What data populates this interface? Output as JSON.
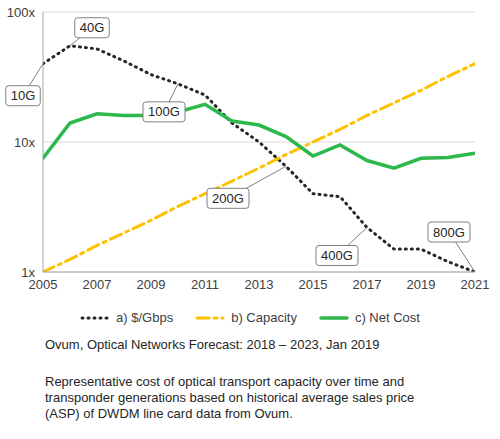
{
  "chart_data": {
    "type": "line",
    "log": "y",
    "grid": true,
    "x": [
      2005,
      2006,
      2007,
      2008,
      2009,
      2010,
      2011,
      2012,
      2013,
      2014,
      2015,
      2016,
      2017,
      2018,
      2019,
      2020,
      2021
    ],
    "xlim": [
      2005,
      2021
    ],
    "xticks": [
      2005,
      2007,
      2009,
      2011,
      2013,
      2015,
      2017,
      2019,
      2021
    ],
    "ylim": [
      1,
      100
    ],
    "yticks": [
      {
        "value": 1,
        "label": "1x"
      },
      {
        "value": 10,
        "label": "10x"
      },
      {
        "value": 100,
        "label": "100x"
      }
    ],
    "legend": "bottom",
    "series": [
      {
        "name": "a) $/Gbps",
        "color": "#262626",
        "line_style": "dotted",
        "values": [
          40,
          55,
          52,
          42,
          33,
          28,
          23,
          14,
          10,
          6.5,
          4,
          3.8,
          2.2,
          1.5,
          1.5,
          1.2,
          1
        ]
      },
      {
        "name": "b) Capacity",
        "color": "#ffc000",
        "line_style": "dash_dot",
        "values": [
          1,
          1.25,
          1.6,
          2,
          2.5,
          3.2,
          4,
          5,
          6.3,
          8,
          10,
          12.5,
          16,
          20,
          25,
          32,
          40
        ]
      },
      {
        "name": "c) Net Cost",
        "color": "#2eb84b",
        "line_style": "solid",
        "values": [
          7.5,
          14,
          16.5,
          16,
          16,
          17,
          19.5,
          14.5,
          13.5,
          11,
          7.8,
          9.5,
          7.2,
          6.3,
          7.5,
          7.6,
          8.2
        ]
      }
    ],
    "annotations": [
      {
        "text": "10G",
        "x": 2005,
        "y": 40
      },
      {
        "text": "40G",
        "x": 2006,
        "y": 55
      },
      {
        "text": "100G",
        "x": 2010,
        "y": 28
      },
      {
        "text": "200G",
        "x": 2014,
        "y": 6.5
      },
      {
        "text": "400G",
        "x": 2017,
        "y": 2.2
      },
      {
        "text": "800G",
        "x": 2021,
        "y": 1
      }
    ],
    "source": "Ovum, Optical Networks Forecast: 2018 – 2023, Jan 2019",
    "caption": "Representative cost of optical transport capacity over time and transponder generations based on historical average sales price (ASP) of DWDM line card data from Ovum."
  }
}
